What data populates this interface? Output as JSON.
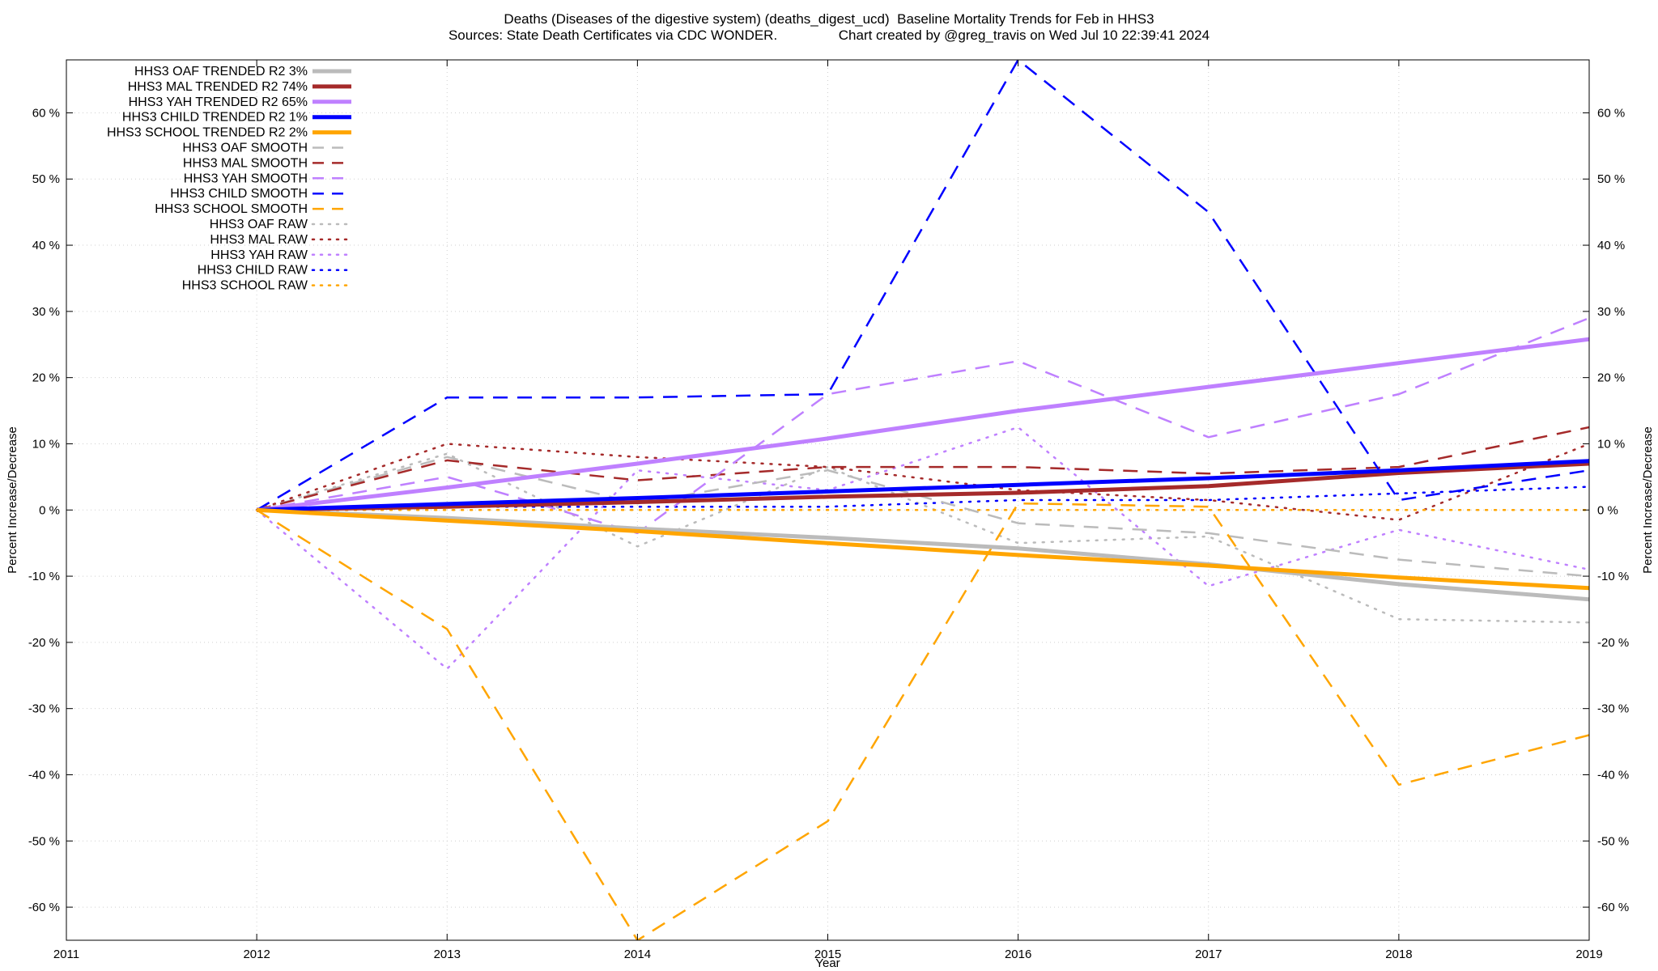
{
  "title": "Deaths (Diseases of the digestive system) (deaths_digest_ucd)  Baseline Mortality Trends for Feb in HHS3",
  "subtitle": "Sources: State Death Certificates via CDC WONDER.                Chart created by @greg_travis on Wed Jul 10 22:39:41 2024",
  "chart_data": {
    "type": "line",
    "xlabel": "Year",
    "ylabel": "Percent Increase/Decrease",
    "y2label": "Percent Increase/Decrease",
    "xlim": [
      2011,
      2019
    ],
    "ylim": [
      -65,
      68
    ],
    "x_ticks": [
      "2011",
      "2012",
      "2013",
      "2014",
      "2015",
      "2016",
      "2017",
      "2018",
      "2019"
    ],
    "y_ticks": [
      {
        "v": 60,
        "label": "60 %"
      },
      {
        "v": 50,
        "label": "50 %"
      },
      {
        "v": 40,
        "label": "40 %"
      },
      {
        "v": 30,
        "label": "30 %"
      },
      {
        "v": 20,
        "label": "20 %"
      },
      {
        "v": 10,
        "label": "10 %"
      },
      {
        "v": 0,
        "label": "0 %"
      },
      {
        "v": -10,
        "label": "-10 %"
      },
      {
        "v": -20,
        "label": "-20 %"
      },
      {
        "v": -30,
        "label": "-30 %"
      },
      {
        "v": -40,
        "label": "-40 %"
      },
      {
        "v": -50,
        "label": "-50 %"
      },
      {
        "v": -60,
        "label": "-60 %"
      }
    ],
    "grid": true,
    "legend_position": "top-left",
    "x": [
      2012,
      2013,
      2014,
      2015,
      2016,
      2017,
      2018,
      2019
    ],
    "series": [
      {
        "name": "HHS3 OAF TRENDED R2",
        "r2": "3%",
        "style": "solid",
        "color": "#bbbbbb",
        "values": [
          0,
          -1.2,
          -2.8,
          -4.2,
          -5.8,
          -8.2,
          -11.2,
          -13.5
        ]
      },
      {
        "name": "HHS3 MAL TRENDED R2",
        "r2": "74%",
        "style": "solid",
        "color": "#a52a2a",
        "values": [
          0,
          0.5,
          1.2,
          2.0,
          2.6,
          3.6,
          5.6,
          7.0
        ]
      },
      {
        "name": "HHS3 YAH TRENDED R2",
        "r2": "65%",
        "style": "solid",
        "color": "#bf80ff",
        "values": [
          0,
          3.4,
          7.0,
          10.8,
          15.0,
          18.6,
          22.2,
          25.8
        ]
      },
      {
        "name": "HHS3 CHILD TRENDED R2",
        "r2": "1%",
        "style": "solid",
        "color": "#0000ff",
        "values": [
          0,
          0.9,
          1.8,
          2.8,
          3.8,
          4.8,
          6.0,
          7.4
        ]
      },
      {
        "name": "HHS3 SCHOOL TRENDED R2",
        "r2": "2%",
        "style": "solid",
        "color": "#ffa500",
        "values": [
          0,
          -1.6,
          -3.2,
          -5.0,
          -6.8,
          -8.4,
          -10.2,
          -11.8
        ]
      },
      {
        "name": "HHS3 OAF SMOOTH",
        "style": "dashed",
        "color": "#bbbbbb",
        "values": [
          0,
          8.0,
          1.0,
          6.0,
          -2.0,
          -3.5,
          -7.5,
          -10.0
        ]
      },
      {
        "name": "HHS3 MAL SMOOTH",
        "style": "dashed",
        "color": "#a52a2a",
        "values": [
          0,
          7.5,
          4.5,
          6.5,
          6.5,
          5.5,
          6.5,
          12.5
        ]
      },
      {
        "name": "HHS3 YAH SMOOTH",
        "style": "dashed",
        "color": "#bf80ff",
        "values": [
          0,
          5.0,
          -3.5,
          17.5,
          22.5,
          11.0,
          17.5,
          29.0
        ]
      },
      {
        "name": "HHS3 CHILD SMOOTH",
        "style": "dashed",
        "color": "#0000ff",
        "values": [
          0,
          17.0,
          17.0,
          17.5,
          68.0,
          45.0,
          1.5,
          6.0
        ]
      },
      {
        "name": "HHS3 SCHOOL SMOOTH",
        "style": "dashed",
        "color": "#ffa500",
        "values": [
          0,
          -18.0,
          -65.0,
          -47.0,
          1.0,
          0.5,
          -41.5,
          -34.0
        ]
      },
      {
        "name": "HHS3 OAF RAW",
        "style": "dotted",
        "color": "#bbbbbb",
        "values": [
          0,
          8.5,
          -5.5,
          6.5,
          -5.0,
          -4.0,
          -16.5,
          -17.0
        ]
      },
      {
        "name": "HHS3 MAL RAW",
        "style": "dotted",
        "color": "#a52a2a",
        "values": [
          0,
          10.0,
          8.0,
          6.5,
          3.0,
          1.5,
          -1.5,
          10.0
        ]
      },
      {
        "name": "HHS3 YAH RAW",
        "style": "dotted",
        "color": "#bf80ff",
        "values": [
          0,
          -24.0,
          6.0,
          3.0,
          12.5,
          -11.5,
          -3.0,
          -9.0
        ]
      },
      {
        "name": "HHS3 CHILD RAW",
        "style": "dotted",
        "color": "#0000ff",
        "values": [
          0,
          0.5,
          0.5,
          0.5,
          1.5,
          1.5,
          2.5,
          3.5
        ]
      },
      {
        "name": "HHS3 SCHOOL RAW",
        "style": "dotted",
        "color": "#ffa500",
        "values": [
          0,
          0,
          0,
          0,
          0,
          0,
          0,
          0
        ]
      }
    ]
  }
}
